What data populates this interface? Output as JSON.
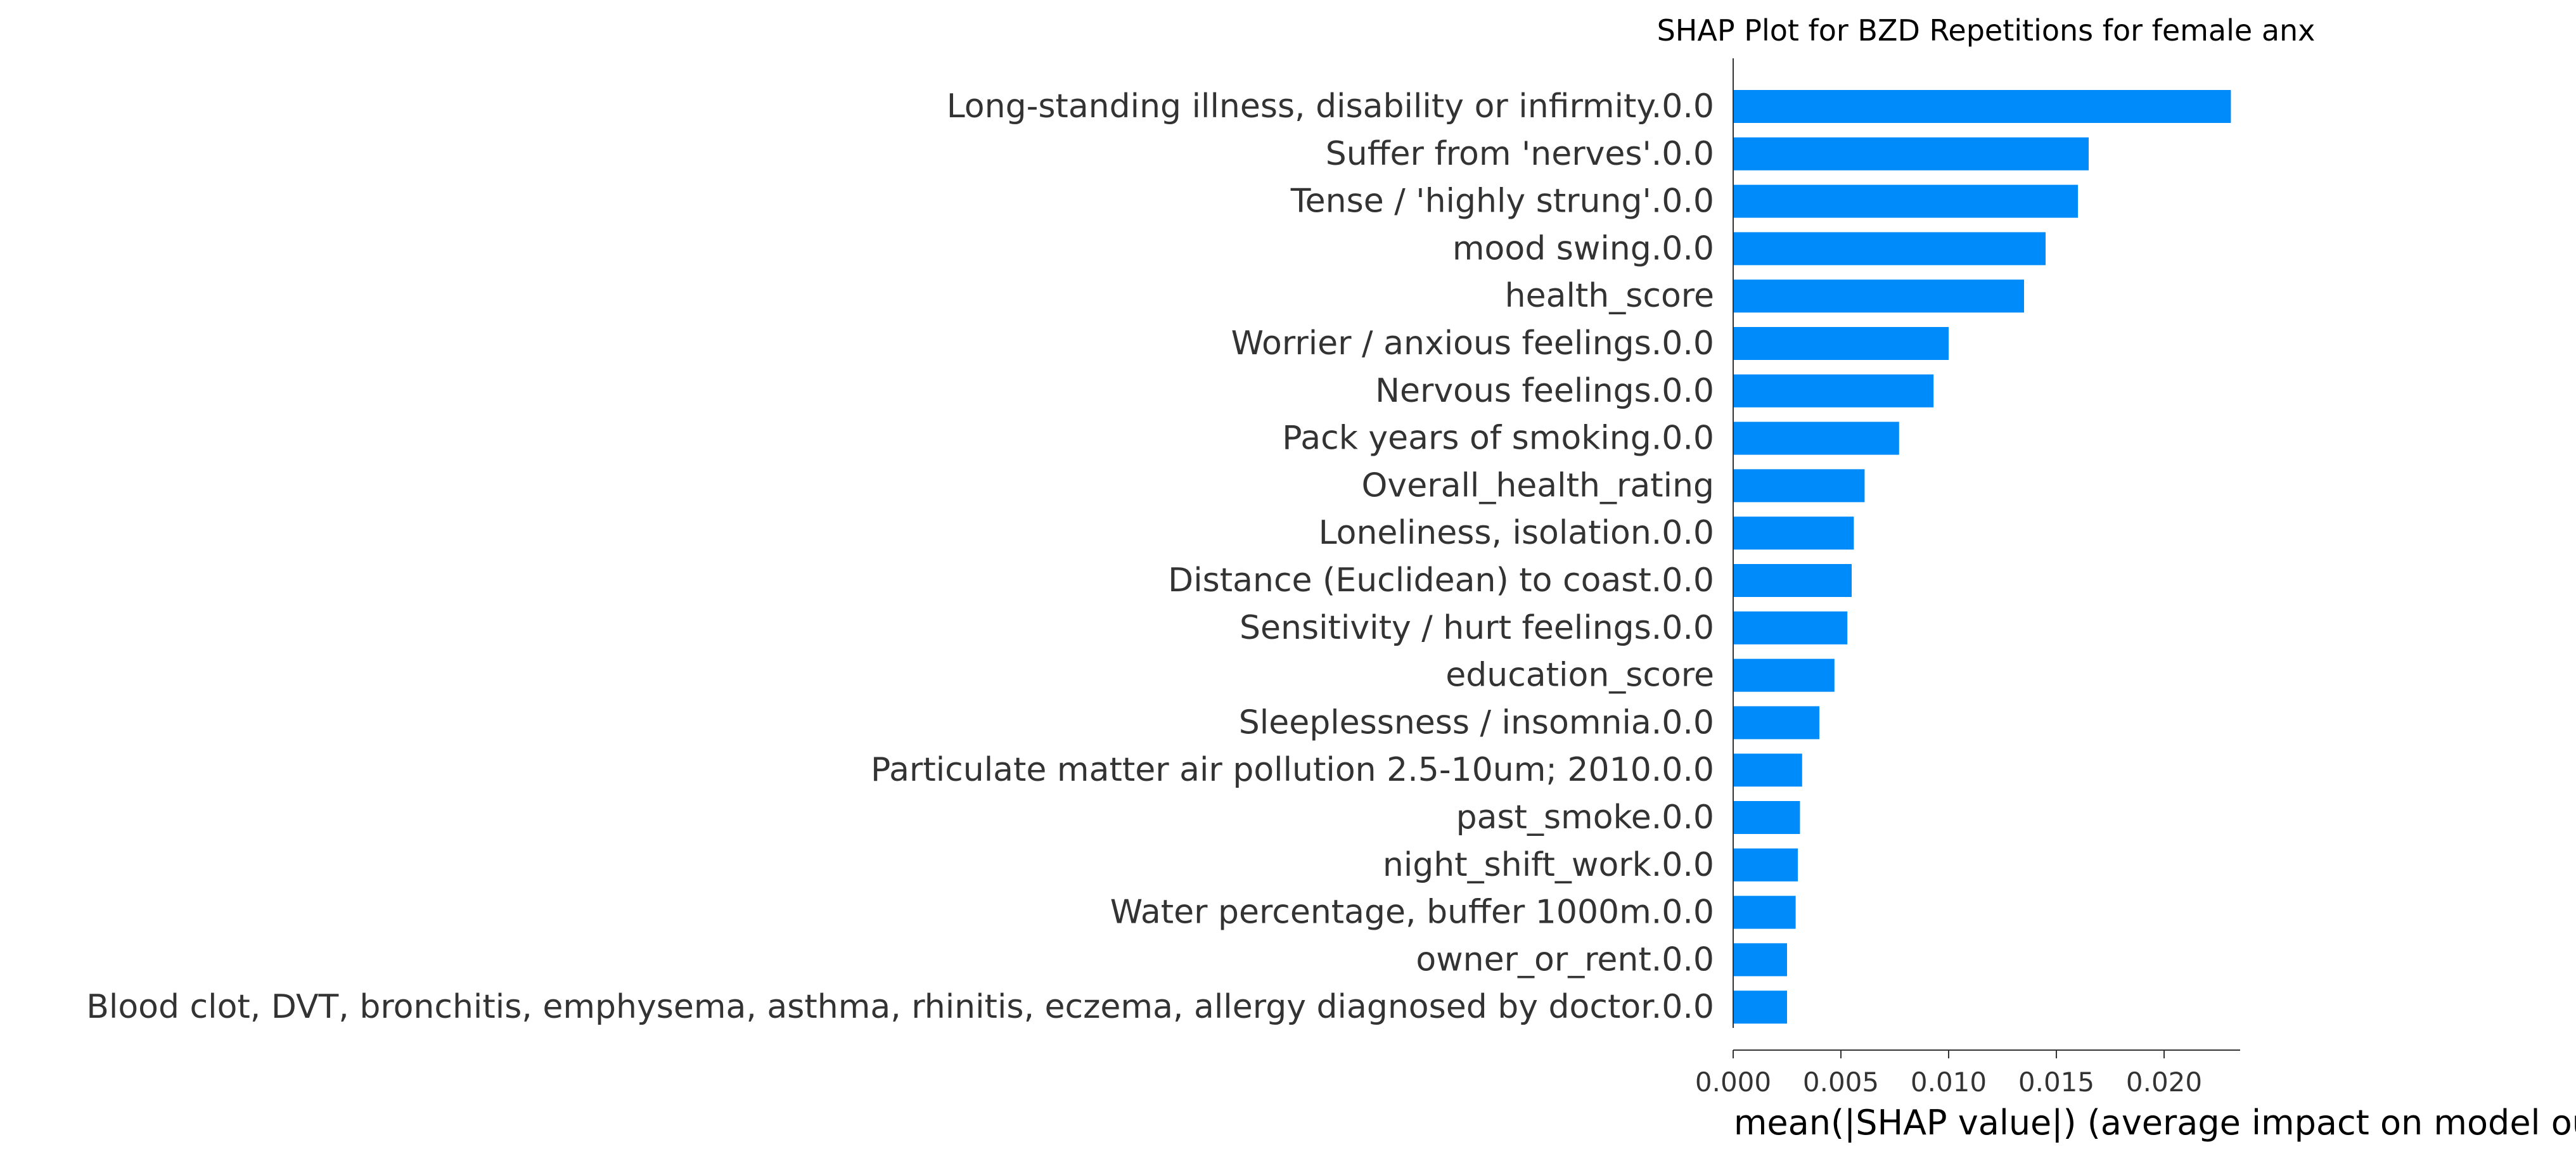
{
  "chart_data": {
    "type": "bar",
    "orientation": "horizontal",
    "title": "SHAP Plot for BZD Repetitions for female anx",
    "xlabel": "mean(|SHAP value|) (average impact on model output magnitude)",
    "ylabel": "",
    "xlim": [
      0,
      0.0243
    ],
    "xticks": [
      0.0,
      0.005,
      0.01,
      0.015,
      0.02
    ],
    "xtick_labels": [
      "0.000",
      "0.005",
      "0.010",
      "0.015",
      "0.020"
    ],
    "grid": false,
    "legend": "none",
    "bar_color": "#008bfb",
    "categories": [
      "Long-standing illness, disability or infirmity.0.0",
      "Suffer from 'nerves'.0.0",
      "Tense / 'highly strung'.0.0",
      "mood swing.0.0",
      "health_score",
      "Worrier / anxious feelings.0.0",
      "Nervous feelings.0.0",
      "Pack years of smoking.0.0",
      "Overall_health_rating",
      "Loneliness, isolation.0.0",
      "Distance (Euclidean) to coast.0.0",
      "Sensitivity / hurt feelings.0.0",
      "education_score",
      "Sleeplessness / insomnia.0.0",
      "Particulate matter air pollution 2.5-10um; 2010.0.0",
      "past_smoke.0.0",
      "night_shift_work.0.0",
      "Water percentage, buffer 1000m.0.0",
      "owner_or_rent.0.0",
      "Blood clot, DVT, bronchitis, emphysema, asthma, rhinitis, eczema, allergy diagnosed by doctor.0.0"
    ],
    "values": [
      0.0231,
      0.0165,
      0.016,
      0.0145,
      0.0135,
      0.01,
      0.0093,
      0.0077,
      0.0061,
      0.0056,
      0.0055,
      0.0053,
      0.0047,
      0.004,
      0.0032,
      0.0031,
      0.003,
      0.0029,
      0.0025,
      0.0025
    ]
  }
}
